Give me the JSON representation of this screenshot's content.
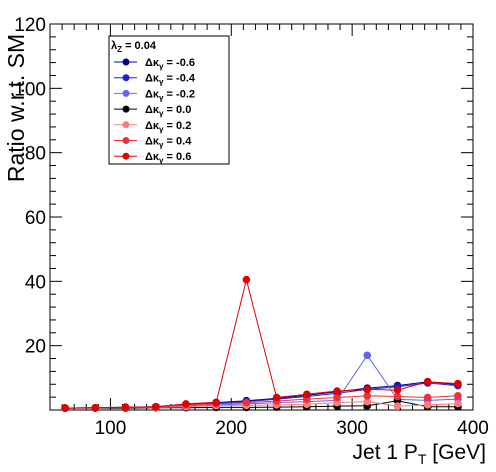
{
  "chart_data": {
    "type": "line",
    "xlabel": "Jet 1 P",
    "xlabel_sub": "T",
    "xlabel_unit": " [GeV]",
    "ylabel": "Ratio w.r.t. SM",
    "xlim": [
      50,
      400
    ],
    "ylim": [
      0,
      120
    ],
    "xticks": [
      100,
      200,
      300,
      400
    ],
    "yticks": [
      20,
      40,
      60,
      80,
      100,
      120
    ],
    "legend_position": "top-left",
    "legend_header": {
      "prefix": "λ",
      "sub": "Z",
      "value": " = 0.04"
    },
    "x": [
      62.5,
      87.5,
      112.5,
      137.5,
      162.5,
      187.5,
      212.5,
      237.5,
      262.5,
      287.5,
      312.5,
      337.5,
      362.5,
      387.5
    ],
    "series": [
      {
        "name": "-0.6",
        "color": "#00008b",
        "values": [
          0.6,
          0.7,
          0.8,
          1.0,
          1.8,
          2.3,
          2.9,
          3.6,
          4.6,
          5.7,
          6.8,
          7.6,
          8.8,
          7.9
        ]
      },
      {
        "name": "-0.4",
        "color": "#1f1fd6",
        "values": [
          0.6,
          0.7,
          0.8,
          1.0,
          1.7,
          2.1,
          2.6,
          3.4,
          4.2,
          5.2,
          6.4,
          7.2,
          8.4,
          7.6
        ]
      },
      {
        "name": "-0.2",
        "color": "#6464ee",
        "values": [
          0.6,
          0.7,
          0.8,
          0.9,
          1.3,
          1.6,
          1.9,
          2.3,
          2.6,
          3.0,
          17.0,
          3.3,
          3.0,
          3.4
        ]
      },
      {
        "name": "0.0",
        "color": "#000000",
        "values": [
          0.6,
          0.6,
          0.6,
          0.7,
          0.7,
          0.8,
          0.8,
          0.9,
          1.0,
          1.2,
          1.3,
          2.9,
          1.0,
          1.0
        ]
      },
      {
        "name": "0.2",
        "color": "#ff7a7a",
        "values": [
          0.6,
          0.7,
          0.8,
          0.8,
          1.0,
          1.3,
          1.4,
          1.6,
          1.8,
          2.3,
          2.6,
          1.2,
          1.6,
          2.0
        ]
      },
      {
        "name": "0.4",
        "color": "#e8333e",
        "values": [
          0.6,
          0.7,
          0.8,
          0.9,
          1.6,
          1.9,
          2.3,
          2.8,
          3.4,
          3.9,
          4.4,
          4.2,
          3.9,
          4.4
        ]
      },
      {
        "name": "0.6",
        "color": "#e00000",
        "values": [
          0.6,
          0.7,
          0.9,
          1.0,
          1.9,
          2.4,
          40.5,
          3.9,
          4.9,
          5.9,
          6.4,
          6.2,
          8.8,
          8.2
        ]
      }
    ]
  }
}
